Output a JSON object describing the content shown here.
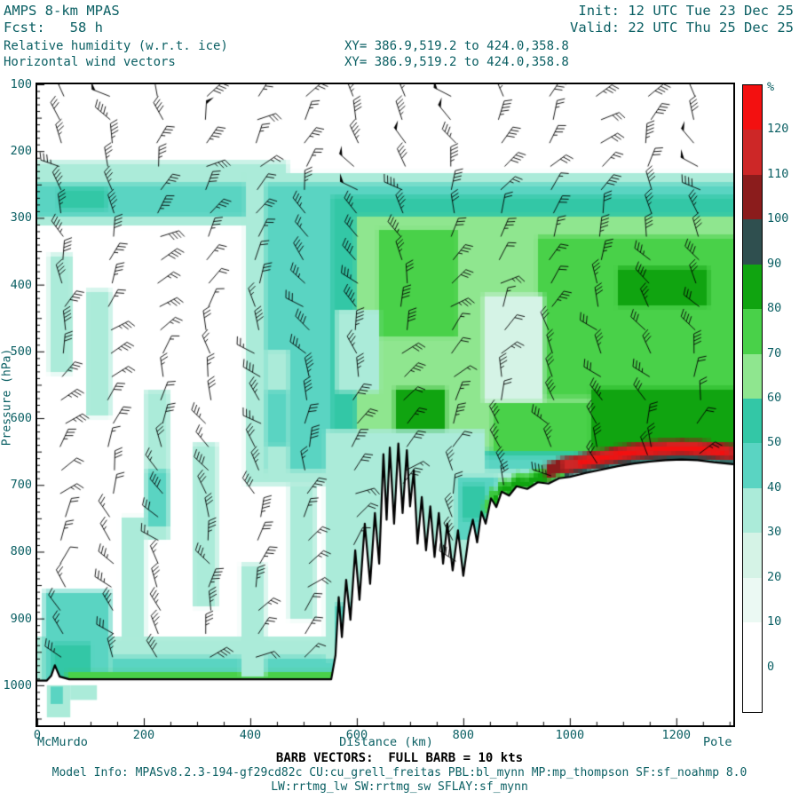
{
  "header": {
    "model": "AMPS 8-km MPAS",
    "fcst": "Fcst:   58 h",
    "init": "Init: 12 UTC Tue 23 Dec 25",
    "valid": "Valid: 22 UTC Thu 25 Dec 25",
    "field1": "Relative humidity (w.r.t. ice)",
    "field2": "Horizontal wind vectors",
    "xy1": "XY= 386.9,519.2 to 424.0,358.8",
    "xy2": "XY= 386.9,519.2 to 424.0,358.8"
  },
  "footer": {
    "left_label": "McMurdo",
    "x_axis_title": "Distance (km)",
    "right_label": "Pole",
    "barb_note": "BARB VECTORS:  FULL BARB = 10 kts",
    "model_info": "Model Info: MPASv8.2.3-194-gf29cd82c CU:cu_grell_freitas PBL:bl_mynn MP:mp_thompson SF:sf_noahmp 8.0",
    "model_info2": "LW:rrtmg_lw SW:rrtmg_sw SFLAY:sf_mynn"
  },
  "colors": {
    "text_teal": "#0a5f63",
    "frame": "#000000",
    "terrain_line": "#000000",
    "barb": "#000000"
  },
  "chart_data": {
    "type": "heatmap",
    "subtype": "vertical cross-section (pressure vs distance) with wind barbs",
    "title": "Relative humidity (w.r.t. ice) with horizontal wind vectors, AMPS 8-km MPAS, Fcst 58 h",
    "xlabel": "Distance (km)",
    "ylabel": "Pressure (hPa)",
    "x_range_km": [
      0,
      1307
    ],
    "x_ticks": [
      0,
      200,
      400,
      600,
      800,
      1000,
      1200
    ],
    "y_range_hpa": [
      100,
      1060
    ],
    "y_ticks": [
      100,
      200,
      300,
      400,
      500,
      600,
      700,
      800,
      900,
      1000
    ],
    "endpoints": {
      "left": "McMurdo",
      "right": "Pole"
    },
    "colorbar": {
      "units": "%",
      "levels": [
        0,
        10,
        20,
        30,
        40,
        50,
        60,
        70,
        80,
        90,
        100,
        110,
        120
      ],
      "colors": [
        "#ffffff",
        "#ffffff",
        "#ebf9f3",
        "#d5f3e6",
        "#abebd9",
        "#5ad4c2",
        "#33c7a6",
        "#8fe68f",
        "#49d149",
        "#10a410",
        "#2f4f4f",
        "#8b1c1c",
        "#cd2727",
        "#f31010"
      ]
    },
    "terrain_profile_km_hpa": [
      [
        0,
        993
      ],
      [
        18,
        993
      ],
      [
        26,
        986
      ],
      [
        33,
        970
      ],
      [
        42,
        987
      ],
      [
        60,
        991
      ],
      [
        552,
        991
      ],
      [
        560,
        955
      ],
      [
        566,
        868
      ],
      [
        572,
        928
      ],
      [
        580,
        842
      ],
      [
        588,
        902
      ],
      [
        597,
        798
      ],
      [
        605,
        872
      ],
      [
        615,
        758
      ],
      [
        625,
        848
      ],
      [
        634,
        742
      ],
      [
        642,
        818
      ],
      [
        650,
        654
      ],
      [
        656,
        752
      ],
      [
        662,
        644
      ],
      [
        670,
        758
      ],
      [
        678,
        638
      ],
      [
        686,
        742
      ],
      [
        694,
        648
      ],
      [
        700,
        732
      ],
      [
        707,
        678
      ],
      [
        714,
        788
      ],
      [
        722,
        718
      ],
      [
        730,
        798
      ],
      [
        738,
        732
      ],
      [
        746,
        808
      ],
      [
        754,
        742
      ],
      [
        762,
        818
      ],
      [
        770,
        758
      ],
      [
        780,
        828
      ],
      [
        790,
        768
      ],
      [
        800,
        836
      ],
      [
        810,
        778
      ],
      [
        818,
        752
      ],
      [
        826,
        786
      ],
      [
        834,
        740
      ],
      [
        842,
        758
      ],
      [
        852,
        720
      ],
      [
        862,
        733
      ],
      [
        872,
        710
      ],
      [
        886,
        716
      ],
      [
        900,
        702
      ],
      [
        920,
        706
      ],
      [
        940,
        696
      ],
      [
        960,
        698
      ],
      [
        980,
        690
      ],
      [
        1000,
        688
      ],
      [
        1030,
        682
      ],
      [
        1060,
        677
      ],
      [
        1090,
        672
      ],
      [
        1120,
        668
      ],
      [
        1150,
        665
      ],
      [
        1180,
        663
      ],
      [
        1210,
        662
      ],
      [
        1240,
        663
      ],
      [
        1270,
        666
      ],
      [
        1307,
        669
      ]
    ],
    "rh_regions": [
      {
        "r": [
          0,
          470,
          215,
          312,
          35
        ]
      },
      {
        "r": [
          0,
          432,
          248,
          298,
          45
        ]
      },
      {
        "r": [
          40,
          130,
          255,
          288,
          55
        ]
      },
      {
        "r": [
          390,
          1307,
          232,
          700,
          35
        ]
      },
      {
        "r": [
          428,
          1307,
          248,
          678,
          45
        ]
      },
      {
        "r": [
          552,
          1307,
          268,
          658,
          55
        ]
      },
      {
        "r": [
          598,
          1307,
          298,
          648,
          65
        ]
      },
      {
        "r": [
          640,
          790,
          318,
          478,
          75
        ]
      },
      {
        "r": [
          940,
          1307,
          328,
          568,
          75
        ]
      },
      {
        "r": [
          855,
          1307,
          575,
          650,
          75
        ]
      },
      {
        "r": [
          1040,
          1307,
          555,
          648,
          85
        ]
      },
      {
        "r": [
          672,
          768,
          555,
          625,
          85
        ]
      },
      {
        "r": [
          1090,
          1260,
          375,
          432,
          85
        ]
      },
      {
        "r": [
          838,
          952,
          415,
          575,
          25
        ]
      },
      {
        "r": [
          560,
          642,
          438,
          560,
          35
        ]
      },
      {
        "r": [
          0,
          565,
          928,
          1002,
          35
        ]
      },
      {
        "r": [
          12,
          138,
          858,
          1002,
          45
        ]
      },
      {
        "r": [
          28,
          100,
          938,
          1002,
          55
        ]
      },
      {
        "r": [
          140,
          562,
          958,
          986,
          45
        ]
      },
      {
        "r": [
          55,
          562,
          980,
          1002,
          75
        ]
      },
      {
        "r": [
          22,
          66,
          355,
          532,
          35
        ]
      },
      {
        "r": [
          92,
          138,
          408,
          598,
          35
        ]
      },
      {
        "r": [
          202,
          248,
          558,
          782,
          35
        ]
      },
      {
        "r": [
          292,
          338,
          638,
          882,
          35
        ]
      },
      {
        "r": [
          382,
          428,
          818,
          988,
          35
        ]
      },
      {
        "r": [
          428,
          472,
          498,
          692,
          35
        ]
      },
      {
        "r": [
          472,
          522,
          698,
          902,
          35
        ]
      },
      {
        "r": [
          158,
          202,
          748,
          932,
          35
        ]
      },
      {
        "r": [
          205,
          245,
          678,
          762,
          45
        ]
      },
      {
        "r": [
          430,
          470,
          558,
          642,
          45
        ]
      },
      {
        "r": [
          540,
          842,
          618,
          962,
          35
        ]
      },
      {
        "r": [
          558,
          622,
          878,
          988,
          45
        ]
      },
      {
        "r": [
          788,
          864,
          688,
          782,
          45
        ]
      },
      {
        "r": [
          798,
          842,
          700,
          752,
          55
        ]
      },
      {
        "tb": [
          880,
          1307,
          10,
          0,
          95
        ]
      },
      {
        "tb": [
          838,
          990,
          22,
          0,
          75
        ]
      },
      {
        "tb": [
          855,
          960,
          14,
          0,
          85
        ]
      },
      {
        "tb": [
          955,
          1307,
          30,
          6,
          105
        ]
      },
      {
        "tb": [
          985,
          1307,
          26,
          9,
          115
        ]
      },
      {
        "tb": [
          1015,
          1295,
          21,
          12,
          125
        ]
      },
      {
        "r": [
          18,
          62,
          1000,
          1048,
          35
        ],
        "post": 1
      },
      {
        "r": [
          62,
          112,
          1000,
          1022,
          35
        ],
        "post": 1
      },
      {
        "r": [
          25,
          48,
          1002,
          1028,
          45
        ],
        "post": 1
      }
    ],
    "barbs": {
      "note": "FULL BARB = 10 kts",
      "columns_start_km": 47,
      "columns_spacing_km": 91.7,
      "row_start_hpa": 118,
      "row_step_hpa": 35,
      "speed_range_kts": [
        5,
        52
      ]
    }
  }
}
